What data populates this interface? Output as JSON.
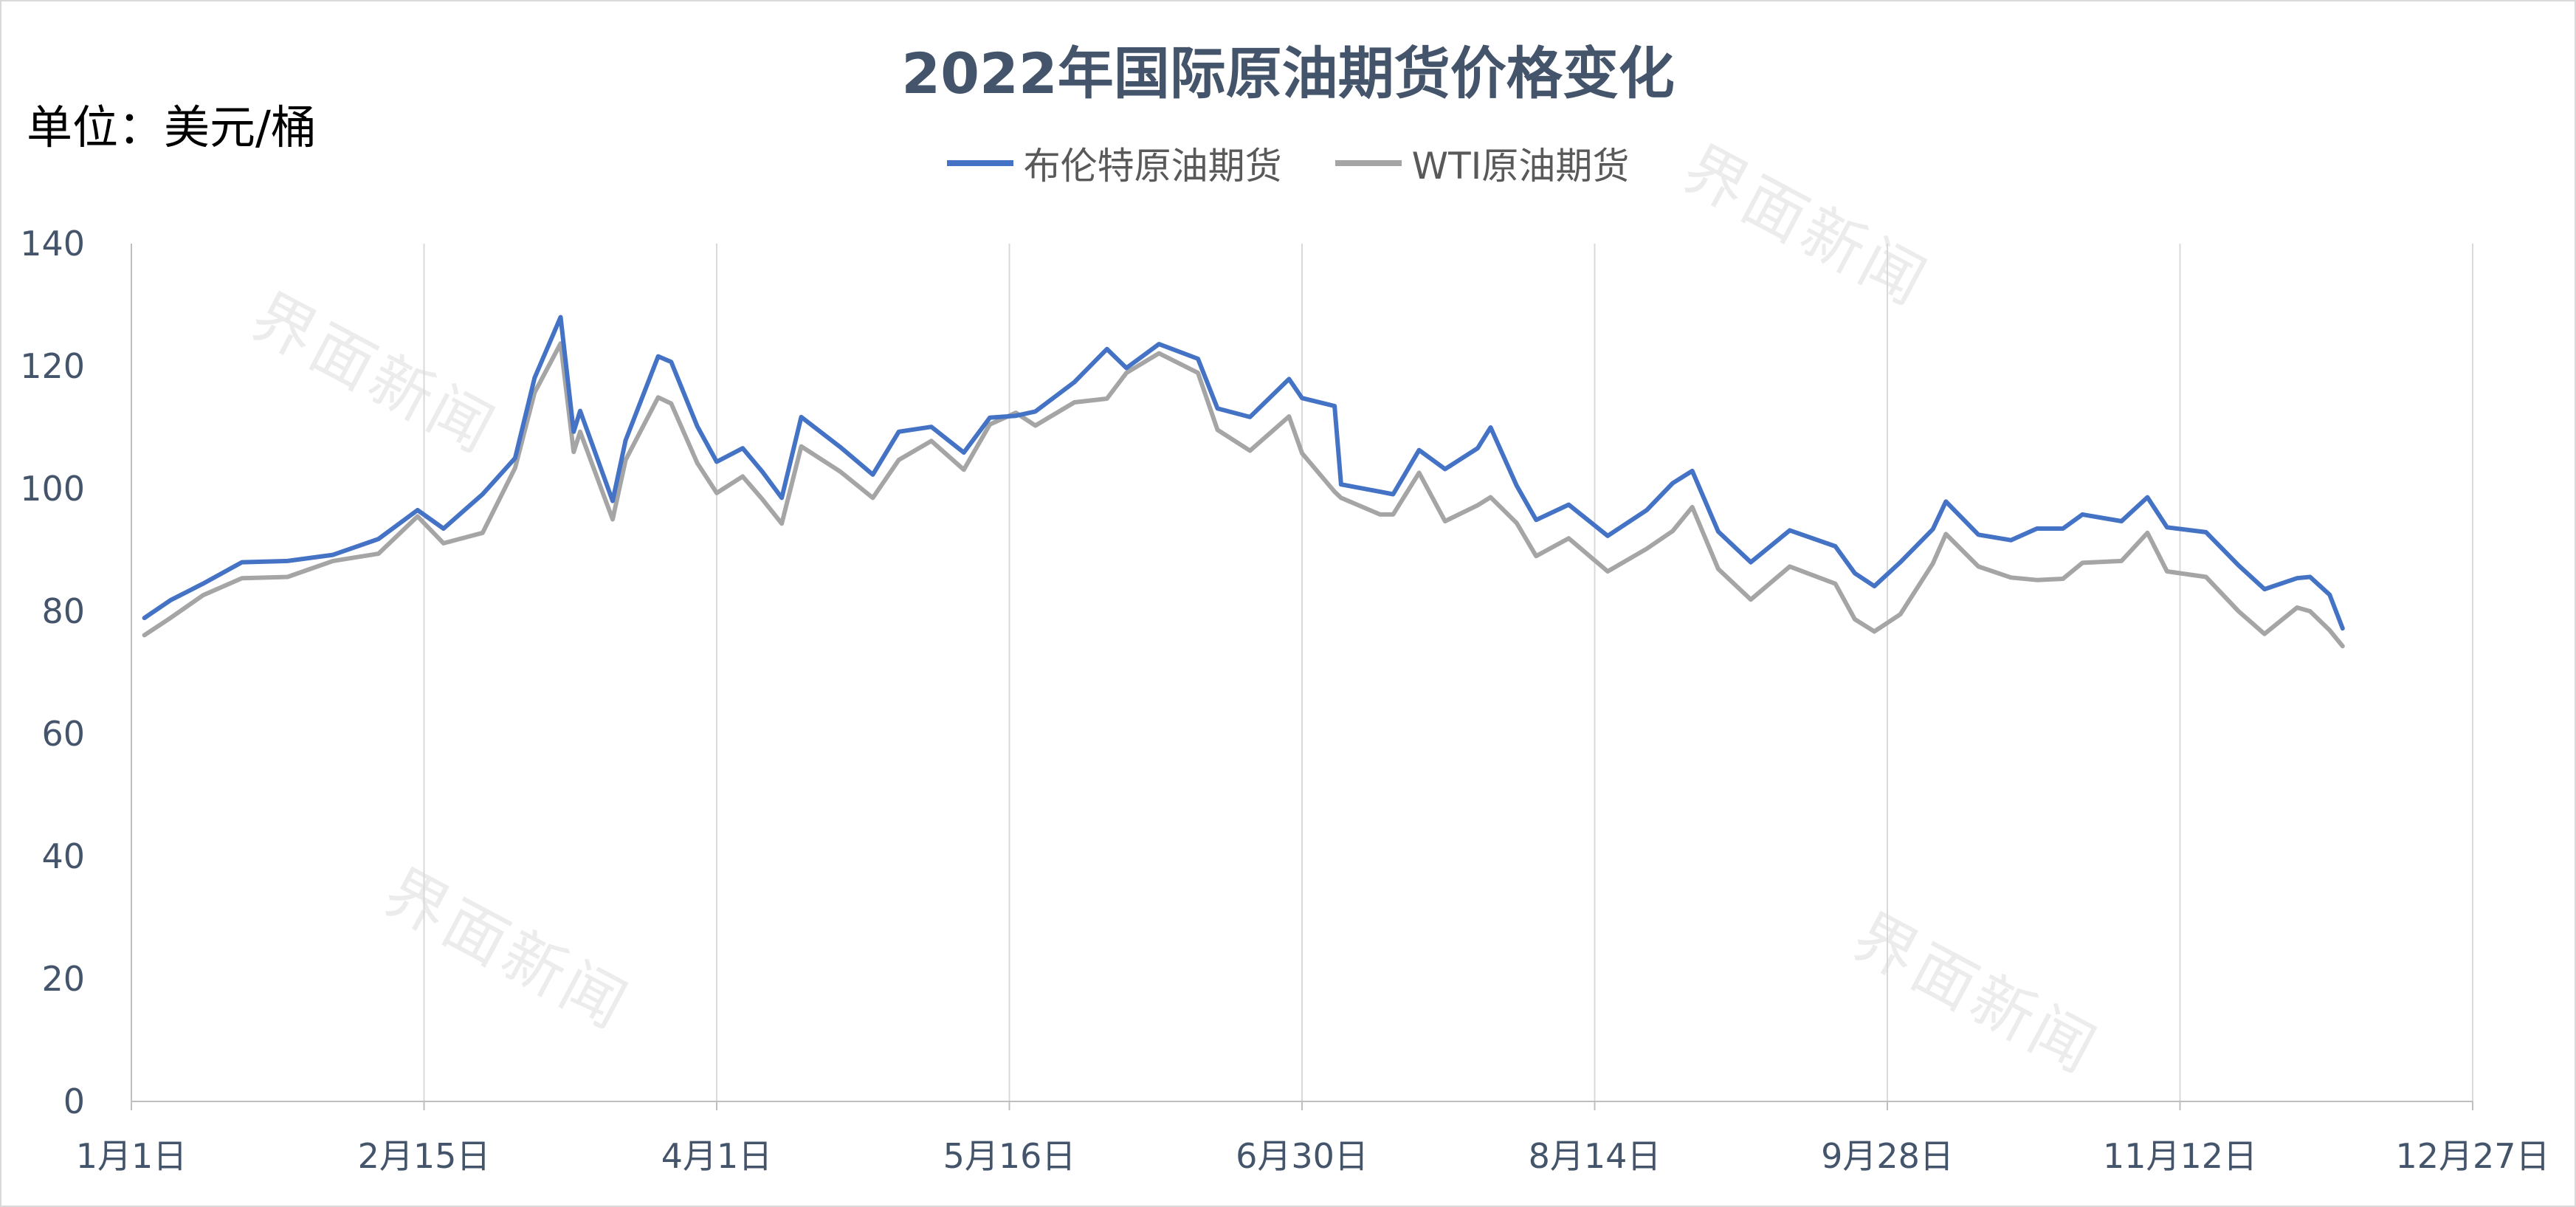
{
  "watermark": "界面新闻",
  "chart_data": {
    "type": "line",
    "title": "2022年国际原油期货价格变化",
    "unit_label": "单位：美元/桶",
    "ylim": [
      0,
      140
    ],
    "y_ticks": [
      0,
      20,
      40,
      60,
      80,
      100,
      120,
      140
    ],
    "x_range": [
      "2022-01-01",
      "2022-12-27"
    ],
    "x_ticks": [
      {
        "label": "1月1日",
        "date": "2022-01-01"
      },
      {
        "label": "2月15日",
        "date": "2022-02-15"
      },
      {
        "label": "4月1日",
        "date": "2022-04-01"
      },
      {
        "label": "5月16日",
        "date": "2022-05-16"
      },
      {
        "label": "6月30日",
        "date": "2022-06-30"
      },
      {
        "label": "8月14日",
        "date": "2022-08-14"
      },
      {
        "label": "9月28日",
        "date": "2022-09-28"
      },
      {
        "label": "11月12日",
        "date": "2022-11-12"
      },
      {
        "label": "12月27日",
        "date": "2022-12-27"
      }
    ],
    "grid": "vertical",
    "legend_position": "top",
    "series": [
      {
        "name": "布伦特原油期货",
        "color": "#4472c4",
        "points": [
          [
            "2022-01-03",
            78.9
          ],
          [
            "2022-01-07",
            81.8
          ],
          [
            "2022-01-12",
            84.5
          ],
          [
            "2022-01-18",
            88.0
          ],
          [
            "2022-01-25",
            88.2
          ],
          [
            "2022-02-01",
            89.2
          ],
          [
            "2022-02-08",
            91.8
          ],
          [
            "2022-02-14",
            96.5
          ],
          [
            "2022-02-18",
            93.5
          ],
          [
            "2022-02-24",
            99.1
          ],
          [
            "2022-03-01",
            105.0
          ],
          [
            "2022-03-04",
            118.1
          ],
          [
            "2022-03-08",
            128.0
          ],
          [
            "2022-03-10",
            109.3
          ],
          [
            "2022-03-11",
            112.7
          ],
          [
            "2022-03-16",
            98.0
          ],
          [
            "2022-03-18",
            107.9
          ],
          [
            "2022-03-23",
            121.6
          ],
          [
            "2022-03-25",
            120.7
          ],
          [
            "2022-03-29",
            110.2
          ],
          [
            "2022-04-01",
            104.4
          ],
          [
            "2022-04-05",
            106.6
          ],
          [
            "2022-04-08",
            102.8
          ],
          [
            "2022-04-11",
            98.5
          ],
          [
            "2022-04-14",
            111.7
          ],
          [
            "2022-04-20",
            106.8
          ],
          [
            "2022-04-25",
            102.3
          ],
          [
            "2022-04-29",
            109.3
          ],
          [
            "2022-05-04",
            110.1
          ],
          [
            "2022-05-09",
            105.9
          ],
          [
            "2022-05-13",
            111.6
          ],
          [
            "2022-05-17",
            111.9
          ],
          [
            "2022-05-20",
            112.6
          ],
          [
            "2022-05-26",
            117.4
          ],
          [
            "2022-05-31",
            122.8
          ],
          [
            "2022-06-03",
            119.7
          ],
          [
            "2022-06-08",
            123.6
          ],
          [
            "2022-06-14",
            121.2
          ],
          [
            "2022-06-17",
            113.1
          ],
          [
            "2022-06-22",
            111.7
          ],
          [
            "2022-06-28",
            117.9
          ],
          [
            "2022-06-30",
            114.8
          ],
          [
            "2022-07-05",
            113.5
          ],
          [
            "2022-07-06",
            100.7
          ],
          [
            "2022-07-12",
            99.5
          ],
          [
            "2022-07-14",
            99.1
          ],
          [
            "2022-07-18",
            106.3
          ],
          [
            "2022-07-22",
            103.2
          ],
          [
            "2022-07-27",
            106.6
          ],
          [
            "2022-07-29",
            110.0
          ],
          [
            "2022-08-02",
            100.5
          ],
          [
            "2022-08-05",
            94.9
          ],
          [
            "2022-08-10",
            97.4
          ],
          [
            "2022-08-16",
            92.3
          ],
          [
            "2022-08-22",
            96.5
          ],
          [
            "2022-08-26",
            100.9
          ],
          [
            "2022-08-29",
            102.9
          ],
          [
            "2022-09-02",
            93.0
          ],
          [
            "2022-09-07",
            88.0
          ],
          [
            "2022-09-13",
            93.2
          ],
          [
            "2022-09-20",
            90.6
          ],
          [
            "2022-09-23",
            86.2
          ],
          [
            "2022-09-26",
            84.1
          ],
          [
            "2022-09-30",
            88.0
          ],
          [
            "2022-10-05",
            93.4
          ],
          [
            "2022-10-07",
            97.9
          ],
          [
            "2022-10-12",
            92.5
          ],
          [
            "2022-10-17",
            91.6
          ],
          [
            "2022-10-21",
            93.5
          ],
          [
            "2022-10-25",
            93.5
          ],
          [
            "2022-10-28",
            95.8
          ],
          [
            "2022-11-03",
            94.7
          ],
          [
            "2022-11-07",
            98.6
          ],
          [
            "2022-11-10",
            93.7
          ],
          [
            "2022-11-16",
            92.9
          ],
          [
            "2022-11-21",
            87.5
          ],
          [
            "2022-11-25",
            83.6
          ],
          [
            "2022-11-30",
            85.4
          ],
          [
            "2022-12-02",
            85.6
          ],
          [
            "2022-12-05",
            82.7
          ],
          [
            "2022-12-07",
            77.2
          ]
        ]
      },
      {
        "name": "WTI原油期货",
        "color": "#a5a5a5",
        "points": [
          [
            "2022-01-03",
            76.1
          ],
          [
            "2022-01-07",
            78.9
          ],
          [
            "2022-01-12",
            82.6
          ],
          [
            "2022-01-18",
            85.4
          ],
          [
            "2022-01-25",
            85.6
          ],
          [
            "2022-02-01",
            88.2
          ],
          [
            "2022-02-08",
            89.4
          ],
          [
            "2022-02-14",
            95.5
          ],
          [
            "2022-02-18",
            91.1
          ],
          [
            "2022-02-24",
            92.8
          ],
          [
            "2022-03-01",
            103.4
          ],
          [
            "2022-03-04",
            115.7
          ],
          [
            "2022-03-08",
            123.7
          ],
          [
            "2022-03-10",
            106.0
          ],
          [
            "2022-03-11",
            109.3
          ],
          [
            "2022-03-16",
            95.0
          ],
          [
            "2022-03-18",
            104.7
          ],
          [
            "2022-03-23",
            114.9
          ],
          [
            "2022-03-25",
            113.9
          ],
          [
            "2022-03-29",
            104.2
          ],
          [
            "2022-04-01",
            99.3
          ],
          [
            "2022-04-05",
            102.0
          ],
          [
            "2022-04-08",
            98.3
          ],
          [
            "2022-04-11",
            94.3
          ],
          [
            "2022-04-14",
            106.9
          ],
          [
            "2022-04-20",
            102.8
          ],
          [
            "2022-04-25",
            98.5
          ],
          [
            "2022-04-29",
            104.7
          ],
          [
            "2022-05-04",
            107.8
          ],
          [
            "2022-05-09",
            103.1
          ],
          [
            "2022-05-13",
            110.5
          ],
          [
            "2022-05-17",
            112.4
          ],
          [
            "2022-05-20",
            110.3
          ],
          [
            "2022-05-26",
            114.1
          ],
          [
            "2022-05-31",
            114.7
          ],
          [
            "2022-06-03",
            118.9
          ],
          [
            "2022-06-08",
            122.1
          ],
          [
            "2022-06-14",
            118.9
          ],
          [
            "2022-06-17",
            109.6
          ],
          [
            "2022-06-22",
            106.2
          ],
          [
            "2022-06-28",
            111.8
          ],
          [
            "2022-06-30",
            105.8
          ],
          [
            "2022-07-05",
            99.5
          ],
          [
            "2022-07-06",
            98.5
          ],
          [
            "2022-07-12",
            95.8
          ],
          [
            "2022-07-14",
            95.8
          ],
          [
            "2022-07-18",
            102.6
          ],
          [
            "2022-07-22",
            94.7
          ],
          [
            "2022-07-27",
            97.3
          ],
          [
            "2022-07-29",
            98.6
          ],
          [
            "2022-08-02",
            94.4
          ],
          [
            "2022-08-05",
            89.0
          ],
          [
            "2022-08-10",
            91.9
          ],
          [
            "2022-08-16",
            86.5
          ],
          [
            "2022-08-22",
            90.2
          ],
          [
            "2022-08-26",
            93.1
          ],
          [
            "2022-08-29",
            97.0
          ],
          [
            "2022-09-02",
            86.9
          ],
          [
            "2022-09-07",
            81.9
          ],
          [
            "2022-09-13",
            87.3
          ],
          [
            "2022-09-20",
            84.5
          ],
          [
            "2022-09-23",
            78.7
          ],
          [
            "2022-09-26",
            76.7
          ],
          [
            "2022-09-30",
            79.5
          ],
          [
            "2022-10-05",
            87.8
          ],
          [
            "2022-10-07",
            92.6
          ],
          [
            "2022-10-12",
            87.3
          ],
          [
            "2022-10-17",
            85.5
          ],
          [
            "2022-10-21",
            85.1
          ],
          [
            "2022-10-25",
            85.3
          ],
          [
            "2022-10-28",
            87.9
          ],
          [
            "2022-11-03",
            88.2
          ],
          [
            "2022-11-07",
            92.8
          ],
          [
            "2022-11-10",
            86.5
          ],
          [
            "2022-11-16",
            85.6
          ],
          [
            "2022-11-21",
            80.0
          ],
          [
            "2022-11-25",
            76.3
          ],
          [
            "2022-11-30",
            80.6
          ],
          [
            "2022-12-02",
            80.0
          ],
          [
            "2022-12-05",
            76.9
          ],
          [
            "2022-12-07",
            74.3
          ]
        ]
      }
    ]
  }
}
